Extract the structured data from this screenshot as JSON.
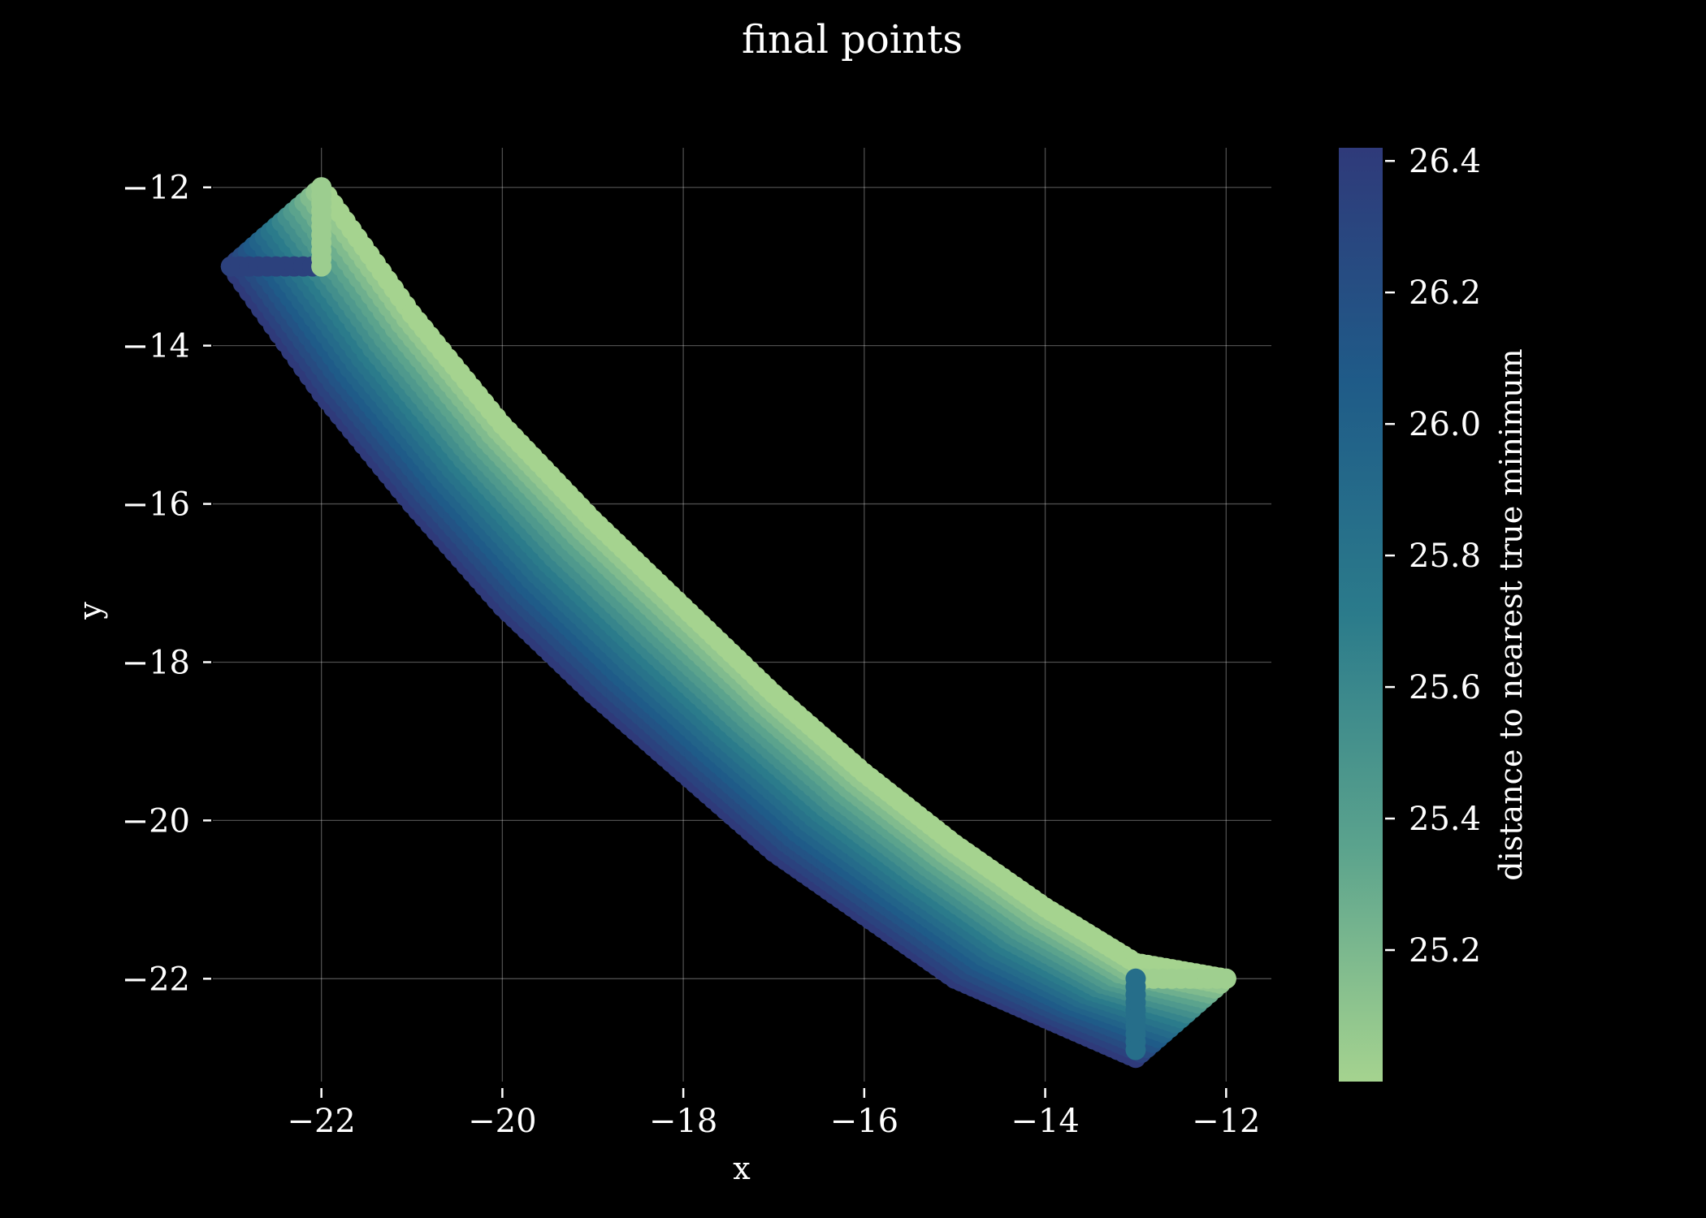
{
  "chart_data": {
    "type": "scatter",
    "title": "final points",
    "xlabel": "x",
    "ylabel": "y",
    "xlim": [
      -23.2,
      -11.5
    ],
    "ylim": [
      -23.3,
      -11.5
    ],
    "xticks": [
      -22,
      -20,
      -18,
      -16,
      -14,
      -12
    ],
    "yticks": [
      -12,
      -14,
      -16,
      -18,
      -20,
      -22
    ],
    "xtick_labels": [
      "−22",
      "−20",
      "−18",
      "−16",
      "−14",
      "−12"
    ],
    "ytick_labels": [
      "−12",
      "−14",
      "−16",
      "−18",
      "−20",
      "−22"
    ],
    "grid": true,
    "background": "#000000",
    "colormap": "crest",
    "colorbar": {
      "label": "distance to nearest true minimum",
      "range": [
        25.0,
        26.42
      ],
      "ticks": [
        25.2,
        25.4,
        25.6,
        25.8,
        26.0,
        26.2,
        26.4
      ],
      "tick_labels": [
        "25.2",
        "25.4",
        "25.6",
        "25.8",
        "26.0",
        "26.2",
        "26.4"
      ],
      "colors": [
        "#a5d38f",
        "#5ba38d",
        "#2b7b8b",
        "#1f5b88",
        "#2f3a7a"
      ]
    },
    "points_description_values": {
      "upper_edge": [
        [
          -22,
          -12
        ],
        [
          -21,
          -13.6
        ],
        [
          -20,
          -15
        ],
        [
          -19,
          -16.2
        ],
        [
          -18,
          -17.3
        ],
        [
          -17,
          -18.4
        ],
        [
          -16,
          -19.4
        ],
        [
          -15,
          -20.3
        ],
        [
          -14,
          -21.1
        ],
        [
          -13,
          -21.8
        ],
        [
          -12,
          -22
        ]
      ],
      "lower_edge": [
        [
          -23,
          -13
        ],
        [
          -22,
          -14.6
        ],
        [
          -21,
          -16
        ],
        [
          -20,
          -17.3
        ],
        [
          -19,
          -18.4
        ],
        [
          -18,
          -19.4
        ],
        [
          -17,
          -20.4
        ],
        [
          -16,
          -21.2
        ],
        [
          -15,
          -22
        ],
        [
          -14,
          -22.5
        ],
        [
          -13,
          -23
        ]
      ]
    }
  }
}
